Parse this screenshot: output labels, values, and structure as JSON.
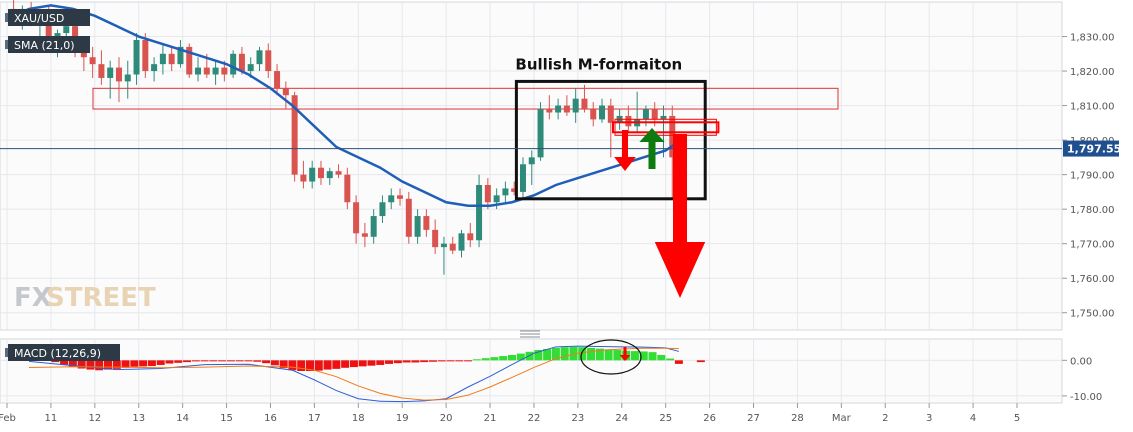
{
  "chart_data": [
    {
      "type": "candlestick",
      "symbol": "XAU/USD",
      "indicator_label": "SMA (21,0)",
      "annotation": "Bullish M-formaiton",
      "last_price": "1,797.55",
      "ylim": [
        1745,
        1840
      ],
      "y_ticks": [
        "1,750.00",
        "1,760.00",
        "1,770.00",
        "1,780.00",
        "1,790.00",
        "1,800.00",
        "1,810.00",
        "1,820.00",
        "1,830.00"
      ],
      "y_tick_values": [
        1750,
        1760,
        1770,
        1780,
        1790,
        1800,
        1810,
        1820,
        1830
      ],
      "x_ticks": [
        "Feb",
        "11",
        "12",
        "13",
        "14",
        "15",
        "16",
        "17",
        "18",
        "19",
        "20",
        "21",
        "22",
        "23",
        "24",
        "25",
        "26",
        "27",
        "28",
        "Mar",
        "2",
        "3",
        "4",
        "5"
      ],
      "x_tick_values": [
        10,
        11,
        12,
        13,
        14,
        15,
        16,
        17,
        18,
        19,
        20,
        21,
        22,
        23,
        24,
        25,
        26,
        27,
        28,
        29,
        30,
        31,
        32,
        33
      ],
      "candles": [
        {
          "t": 10.15,
          "o": 1838,
          "h": 1841,
          "l": 1834,
          "c": 1836
        },
        {
          "t": 10.35,
          "o": 1836,
          "h": 1839,
          "l": 1832,
          "c": 1838
        },
        {
          "t": 10.55,
          "o": 1838,
          "h": 1840,
          "l": 1833,
          "c": 1835
        },
        {
          "t": 10.75,
          "o": 1835,
          "h": 1838,
          "l": 1830,
          "c": 1837
        },
        {
          "t": 10.95,
          "o": 1837,
          "h": 1839,
          "l": 1826,
          "c": 1829
        },
        {
          "t": 11.15,
          "o": 1829,
          "h": 1832,
          "l": 1824,
          "c": 1831
        },
        {
          "t": 11.35,
          "o": 1831,
          "h": 1836,
          "l": 1827,
          "c": 1833
        },
        {
          "t": 11.55,
          "o": 1833,
          "h": 1835,
          "l": 1824,
          "c": 1826
        },
        {
          "t": 11.75,
          "o": 1826,
          "h": 1830,
          "l": 1820,
          "c": 1824
        },
        {
          "t": 11.95,
          "o": 1824,
          "h": 1827,
          "l": 1818,
          "c": 1822
        },
        {
          "t": 12.15,
          "o": 1822,
          "h": 1826,
          "l": 1816,
          "c": 1818
        },
        {
          "t": 12.35,
          "o": 1818,
          "h": 1823,
          "l": 1812,
          "c": 1821
        },
        {
          "t": 12.55,
          "o": 1821,
          "h": 1824,
          "l": 1811,
          "c": 1817
        },
        {
          "t": 12.75,
          "o": 1817,
          "h": 1823,
          "l": 1812,
          "c": 1819
        },
        {
          "t": 12.95,
          "o": 1819,
          "h": 1831,
          "l": 1816,
          "c": 1829
        },
        {
          "t": 13.15,
          "o": 1829,
          "h": 1831,
          "l": 1818,
          "c": 1820
        },
        {
          "t": 13.35,
          "o": 1820,
          "h": 1824,
          "l": 1817,
          "c": 1822
        },
        {
          "t": 13.55,
          "o": 1822,
          "h": 1828,
          "l": 1819,
          "c": 1825
        },
        {
          "t": 13.75,
          "o": 1825,
          "h": 1827,
          "l": 1820,
          "c": 1822
        },
        {
          "t": 13.95,
          "o": 1822,
          "h": 1829,
          "l": 1821,
          "c": 1827
        },
        {
          "t": 14.15,
          "o": 1827,
          "h": 1828,
          "l": 1818,
          "c": 1819
        },
        {
          "t": 14.35,
          "o": 1819,
          "h": 1824,
          "l": 1817,
          "c": 1821
        },
        {
          "t": 14.55,
          "o": 1821,
          "h": 1825,
          "l": 1818,
          "c": 1819
        },
        {
          "t": 14.75,
          "o": 1819,
          "h": 1823,
          "l": 1816,
          "c": 1821
        },
        {
          "t": 14.95,
          "o": 1821,
          "h": 1823,
          "l": 1817,
          "c": 1819
        },
        {
          "t": 15.15,
          "o": 1819,
          "h": 1826,
          "l": 1818,
          "c": 1825
        },
        {
          "t": 15.35,
          "o": 1825,
          "h": 1827,
          "l": 1819,
          "c": 1820
        },
        {
          "t": 15.55,
          "o": 1820,
          "h": 1824,
          "l": 1818,
          "c": 1822
        },
        {
          "t": 15.75,
          "o": 1822,
          "h": 1827,
          "l": 1820,
          "c": 1826
        },
        {
          "t": 15.95,
          "o": 1826,
          "h": 1828,
          "l": 1818,
          "c": 1820
        },
        {
          "t": 16.15,
          "o": 1820,
          "h": 1822,
          "l": 1813,
          "c": 1815
        },
        {
          "t": 16.35,
          "o": 1815,
          "h": 1817,
          "l": 1809,
          "c": 1813
        },
        {
          "t": 16.55,
          "o": 1813,
          "h": 1814,
          "l": 1788,
          "c": 1790
        },
        {
          "t": 16.75,
          "o": 1790,
          "h": 1794,
          "l": 1786,
          "c": 1788
        },
        {
          "t": 16.95,
          "o": 1788,
          "h": 1794,
          "l": 1786,
          "c": 1792
        },
        {
          "t": 17.15,
          "o": 1792,
          "h": 1794,
          "l": 1787,
          "c": 1789
        },
        {
          "t": 17.35,
          "o": 1789,
          "h": 1792,
          "l": 1787,
          "c": 1791
        },
        {
          "t": 17.55,
          "o": 1791,
          "h": 1793,
          "l": 1789,
          "c": 1790
        },
        {
          "t": 17.75,
          "o": 1790,
          "h": 1792,
          "l": 1780,
          "c": 1782
        },
        {
          "t": 17.95,
          "o": 1782,
          "h": 1784,
          "l": 1770,
          "c": 1773
        },
        {
          "t": 18.15,
          "o": 1773,
          "h": 1776,
          "l": 1769,
          "c": 1772
        },
        {
          "t": 18.35,
          "o": 1772,
          "h": 1780,
          "l": 1770,
          "c": 1778
        },
        {
          "t": 18.55,
          "o": 1778,
          "h": 1784,
          "l": 1776,
          "c": 1782
        },
        {
          "t": 18.75,
          "o": 1782,
          "h": 1786,
          "l": 1780,
          "c": 1784
        },
        {
          "t": 18.95,
          "o": 1784,
          "h": 1786,
          "l": 1781,
          "c": 1783
        },
        {
          "t": 19.15,
          "o": 1783,
          "h": 1785,
          "l": 1770,
          "c": 1772
        },
        {
          "t": 19.35,
          "o": 1772,
          "h": 1780,
          "l": 1770,
          "c": 1778
        },
        {
          "t": 19.55,
          "o": 1778,
          "h": 1780,
          "l": 1772,
          "c": 1774
        },
        {
          "t": 19.75,
          "o": 1774,
          "h": 1777,
          "l": 1767,
          "c": 1769
        },
        {
          "t": 19.95,
          "o": 1769,
          "h": 1772,
          "l": 1761,
          "c": 1770
        },
        {
          "t": 20.15,
          "o": 1770,
          "h": 1772,
          "l": 1767,
          "c": 1768
        },
        {
          "t": 20.35,
          "o": 1768,
          "h": 1774,
          "l": 1766,
          "c": 1773
        },
        {
          "t": 20.55,
          "o": 1773,
          "h": 1776,
          "l": 1769,
          "c": 1771
        },
        {
          "t": 20.75,
          "o": 1771,
          "h": 1790,
          "l": 1769,
          "c": 1787
        },
        {
          "t": 20.95,
          "o": 1787,
          "h": 1789,
          "l": 1780,
          "c": 1782
        },
        {
          "t": 21.15,
          "o": 1782,
          "h": 1786,
          "l": 1780,
          "c": 1784
        },
        {
          "t": 21.35,
          "o": 1784,
          "h": 1788,
          "l": 1782,
          "c": 1786
        },
        {
          "t": 21.55,
          "o": 1786,
          "h": 1788,
          "l": 1784,
          "c": 1785
        },
        {
          "t": 21.75,
          "o": 1785,
          "h": 1795,
          "l": 1783,
          "c": 1793
        },
        {
          "t": 21.95,
          "o": 1793,
          "h": 1797,
          "l": 1787,
          "c": 1795
        },
        {
          "t": 22.15,
          "o": 1795,
          "h": 1811,
          "l": 1794,
          "c": 1809
        },
        {
          "t": 22.35,
          "o": 1809,
          "h": 1813,
          "l": 1806,
          "c": 1808
        },
        {
          "t": 22.55,
          "o": 1808,
          "h": 1812,
          "l": 1806,
          "c": 1810
        },
        {
          "t": 22.75,
          "o": 1810,
          "h": 1813,
          "l": 1807,
          "c": 1808
        },
        {
          "t": 22.95,
          "o": 1808,
          "h": 1815,
          "l": 1805,
          "c": 1812
        },
        {
          "t": 23.15,
          "o": 1812,
          "h": 1816,
          "l": 1808,
          "c": 1809
        },
        {
          "t": 23.35,
          "o": 1809,
          "h": 1811,
          "l": 1804,
          "c": 1806
        },
        {
          "t": 23.55,
          "o": 1806,
          "h": 1812,
          "l": 1805,
          "c": 1810
        },
        {
          "t": 23.75,
          "o": 1810,
          "h": 1812,
          "l": 1795,
          "c": 1805
        },
        {
          "t": 23.95,
          "o": 1805,
          "h": 1809,
          "l": 1803,
          "c": 1807
        },
        {
          "t": 24.15,
          "o": 1807,
          "h": 1810,
          "l": 1802,
          "c": 1804
        },
        {
          "t": 24.35,
          "o": 1804,
          "h": 1814,
          "l": 1802,
          "c": 1806
        },
        {
          "t": 24.55,
          "o": 1806,
          "h": 1810,
          "l": 1804,
          "c": 1809
        },
        {
          "t": 24.75,
          "o": 1809,
          "h": 1811,
          "l": 1804,
          "c": 1806
        },
        {
          "t": 24.95,
          "o": 1806,
          "h": 1810,
          "l": 1795,
          "c": 1807
        },
        {
          "t": 25.15,
          "o": 1807,
          "h": 1810,
          "l": 1783,
          "c": 1795
        },
        {
          "t": 25.35,
          "o": 1795,
          "h": 1799,
          "l": 1790,
          "c": 1797.55
        }
      ],
      "sma": {
        "name": "SMA (21,0)",
        "x": [
          10,
          10.5,
          11,
          11.5,
          12,
          12.5,
          13,
          13.5,
          14,
          14.5,
          15,
          15.5,
          16,
          16.5,
          17,
          17.5,
          18,
          18.5,
          19,
          19.5,
          20,
          20.5,
          21,
          21.5,
          22,
          22.5,
          23,
          23.5,
          24,
          24.5,
          25,
          25.35
        ],
        "y": [
          1835,
          1838,
          1839,
          1838,
          1836,
          1833,
          1830,
          1828,
          1826,
          1824,
          1822,
          1819,
          1815,
          1810,
          1804,
          1798,
          1795,
          1792,
          1788,
          1785,
          1782,
          1781,
          1781,
          1782,
          1784,
          1787,
          1789,
          1791,
          1793,
          1795,
          1797,
          1800
        ]
      },
      "horizontal_zone": {
        "y_top": 1815,
        "y_bottom": 1809
      },
      "m_box": {
        "t_start": 21.6,
        "t_end": 25.9,
        "y_top": 1817,
        "y_bottom": 1783
      },
      "neckline_zone": {
        "t_start": 23.8,
        "t_end": 26.2,
        "y_top": 1804,
        "y_bottom": 1802
      },
      "price_line": 1797.55
    },
    {
      "type": "macd",
      "indicator_label": "MACD (12,26,9)",
      "ylim": [
        -12,
        6
      ],
      "y_ticks": [
        "0.00",
        "-10.00"
      ],
      "y_tick_values": [
        0,
        -10
      ],
      "histogram": {
        "t": [
          10.5,
          10.7,
          10.9,
          11.1,
          11.3,
          11.5,
          11.7,
          11.9,
          12.1,
          12.3,
          12.5,
          12.7,
          12.9,
          13.1,
          13.3,
          13.5,
          13.7,
          13.9,
          14.1,
          14.3,
          14.5,
          14.7,
          14.9,
          15.1,
          15.3,
          15.5,
          15.7,
          15.9,
          16.1,
          16.3,
          16.5,
          16.7,
          16.9,
          17.1,
          17.3,
          17.5,
          17.7,
          17.9,
          18.1,
          18.3,
          18.5,
          18.7,
          18.9,
          19.1,
          19.3,
          19.5,
          19.7,
          19.9,
          20.1,
          20.3,
          20.5,
          20.7,
          20.9,
          21.1,
          21.3,
          21.5,
          21.7,
          21.9,
          22.1,
          22.3,
          22.5,
          22.7,
          22.9,
          23.1,
          23.3,
          23.5,
          23.7,
          23.9,
          24.1,
          24.3,
          24.5,
          24.7,
          24.9,
          25.1,
          25.3,
          25.8
        ],
        "v": [
          1.8,
          1.2,
          0.6,
          -0.5,
          -1.2,
          -1.8,
          -2.3,
          -2.6,
          -2.8,
          -2.6,
          -2.4,
          -2.1,
          -1.8,
          -1.7,
          -1.6,
          -1.3,
          -0.9,
          -0.7,
          -0.5,
          -0.3,
          -0.2,
          -0.2,
          -0.1,
          -0.1,
          -0.2,
          -0.2,
          -0.4,
          -0.8,
          -1.4,
          -2.2,
          -2.8,
          -3.0,
          -3.0,
          -2.9,
          -2.6,
          -2.4,
          -2.1,
          -1.9,
          -1.7,
          -1.5,
          -1.3,
          -1.0,
          -0.8,
          -0.6,
          -0.6,
          -0.5,
          -0.4,
          -0.3,
          -0.2,
          -0.2,
          -0.2,
          0.3,
          0.6,
          0.9,
          1.2,
          1.5,
          1.9,
          2.4,
          2.9,
          3.2,
          3.5,
          3.7,
          3.8,
          3.7,
          3.5,
          3.3,
          3.1,
          2.9,
          2.7,
          2.6,
          2.5,
          2.3,
          1.5,
          0.5,
          -1.0,
          -0.5
        ]
      },
      "macd_line": {
        "t": [
          10.5,
          11.5,
          12.5,
          13.5,
          14.5,
          15.5,
          16.5,
          17,
          17.5,
          18,
          18.5,
          19,
          19.5,
          20,
          20.5,
          21,
          21.5,
          22,
          22.5,
          23,
          23.5,
          24,
          24.5,
          25,
          25.3
        ],
        "v": [
          -0.3,
          -1.5,
          -2.6,
          -2.3,
          -1.2,
          -1.1,
          -2.8,
          -5.5,
          -8.5,
          -10.8,
          -11.5,
          -11.6,
          -11.4,
          -10.8,
          -7.5,
          -4.5,
          -1.2,
          2.0,
          3.8,
          4.0,
          3.9,
          3.8,
          3.7,
          3.5,
          2.5
        ]
      },
      "signal_line": {
        "t": [
          10.5,
          11.5,
          12.5,
          13.5,
          14.5,
          15.5,
          16.5,
          17,
          17.5,
          18,
          18.5,
          19,
          19.5,
          20,
          20.5,
          21,
          21.5,
          22,
          22.5,
          23,
          23.5,
          24,
          24.5,
          25,
          25.3
        ],
        "v": [
          -2.0,
          -1.8,
          -1.9,
          -2.1,
          -1.9,
          -1.6,
          -1.9,
          -2.8,
          -4.6,
          -7.2,
          -9.3,
          -10.6,
          -11.2,
          -11.0,
          -9.8,
          -7.5,
          -4.8,
          -2.0,
          0.5,
          2.0,
          2.8,
          3.2,
          3.4,
          3.4,
          3.3
        ]
      }
    }
  ],
  "time_axis_labels": [
    "Feb",
    "11",
    "12",
    "13",
    "14",
    "15",
    "16",
    "17",
    "18",
    "19",
    "20",
    "21",
    "22",
    "23",
    "24",
    "25",
    "26",
    "27",
    "28",
    "Mar",
    "2",
    "3",
    "4",
    "5"
  ],
  "colors": {
    "bull": "#2e8b7a",
    "bear": "#d9534f",
    "sma": "#1f5fb8",
    "macd": "#2c5fd6",
    "signal": "#f07b1b",
    "hist_pos": "#33dd33",
    "hist_neg": "#ee1111",
    "annotation_red": "#ff0000",
    "annotation_green": "#0f7a0f",
    "price_badge": "#1f4f8f",
    "label_bg": "#2d3a46"
  },
  "logo": {
    "part1": "FX",
    "part2": "STREET"
  }
}
